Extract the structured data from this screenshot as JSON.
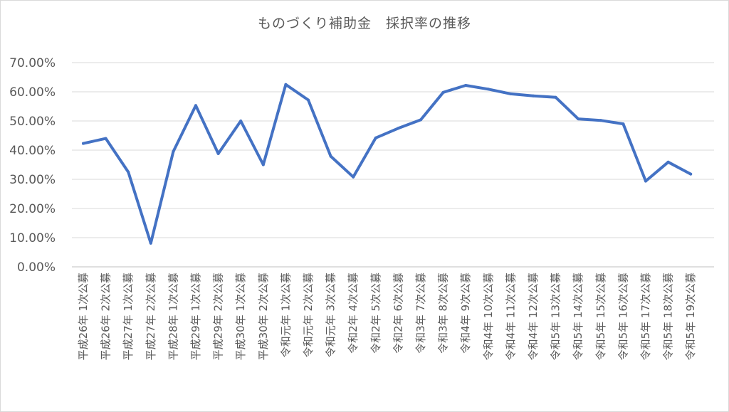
{
  "chart_data": {
    "type": "line",
    "title": "ものづくり補助金　採択率の推移",
    "xlabel": "",
    "ylabel": "",
    "ylim": [
      0,
      0.7
    ],
    "y_ticks": [
      "0.00%",
      "10.00%",
      "20.00%",
      "30.00%",
      "40.00%",
      "50.00%",
      "60.00%",
      "70.00%"
    ],
    "grid": true,
    "legend": "none",
    "categories": [
      "平成26年 1次公募",
      "平成26年 2次公募",
      "平成27年 1次公募",
      "平成27年 2次公募",
      "平成28年 1次公募",
      "平成29年 1次公募",
      "平成29年 2次公募",
      "平成30年 1次公募",
      "平成30年 2次公募",
      "令和元年 1次公募",
      "令和元年 2次公募",
      "令和元年 3次公募",
      "令和2年 4次公募",
      "令和2年 5次公募",
      "令和2年 6次公募",
      "令和3年 7次公募",
      "令和3年 8次公募",
      "令和4年 9次公募",
      "令和4年 10次公募",
      "令和4年 11次公募",
      "令和4年 12次公募",
      "令和5年 13次公募",
      "令和5年 14次公募",
      "令和5年 15次公募",
      "令和5年 16次公募",
      "令和5年 17次公募",
      "令和5年 18次公募",
      "令和5年 19次公募"
    ],
    "series": [
      {
        "color": "#4472c4",
        "values": [
          0.423,
          0.44,
          0.325,
          0.081,
          0.395,
          0.553,
          0.388,
          0.5,
          0.35,
          0.625,
          0.572,
          0.379,
          0.308,
          0.442,
          0.475,
          0.504,
          0.598,
          0.622,
          0.609,
          0.593,
          0.586,
          0.581,
          0.507,
          0.502,
          0.49,
          0.294,
          0.359,
          0.318
        ]
      }
    ]
  }
}
